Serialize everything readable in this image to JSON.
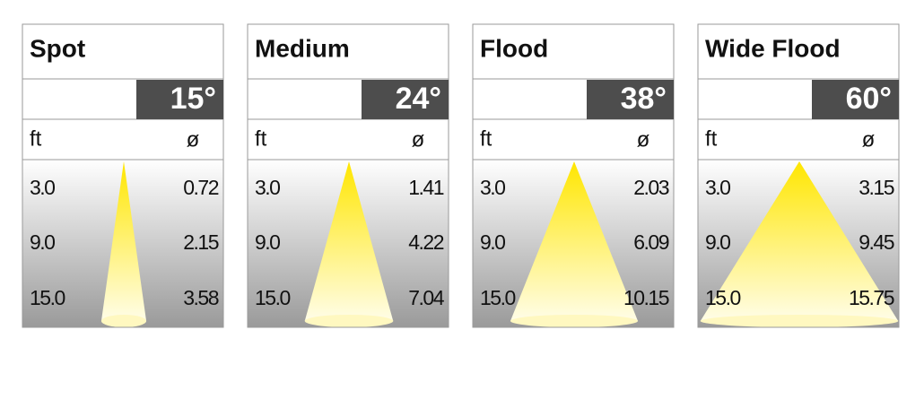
{
  "panels": [
    {
      "title": "Spot",
      "angle": "15°",
      "unit": "ft",
      "diameter": "ø",
      "rows": [
        [
          "3.0",
          "0.72"
        ],
        [
          "9.0",
          "2.15"
        ],
        [
          "15.0",
          "3.58"
        ]
      ]
    },
    {
      "title": "Medium",
      "angle": "24°",
      "unit": "ft",
      "diameter": "ø",
      "rows": [
        [
          "3.0",
          "1.41"
        ],
        [
          "9.0",
          "4.22"
        ],
        [
          "15.0",
          "7.04"
        ]
      ]
    },
    {
      "title": "Flood",
      "angle": "38°",
      "unit": "ft",
      "diameter": "ø",
      "rows": [
        [
          "3.0",
          "2.03"
        ],
        [
          "9.0",
          "6.09"
        ],
        [
          "15.0",
          "10.15"
        ]
      ]
    },
    {
      "title": "Wide Flood",
      "angle": "60°",
      "unit": "ft",
      "diameter": "ø",
      "rows": [
        [
          "3.0",
          "3.15"
        ],
        [
          "9.0",
          "9.45"
        ],
        [
          "15.0",
          "15.75"
        ]
      ]
    }
  ]
}
